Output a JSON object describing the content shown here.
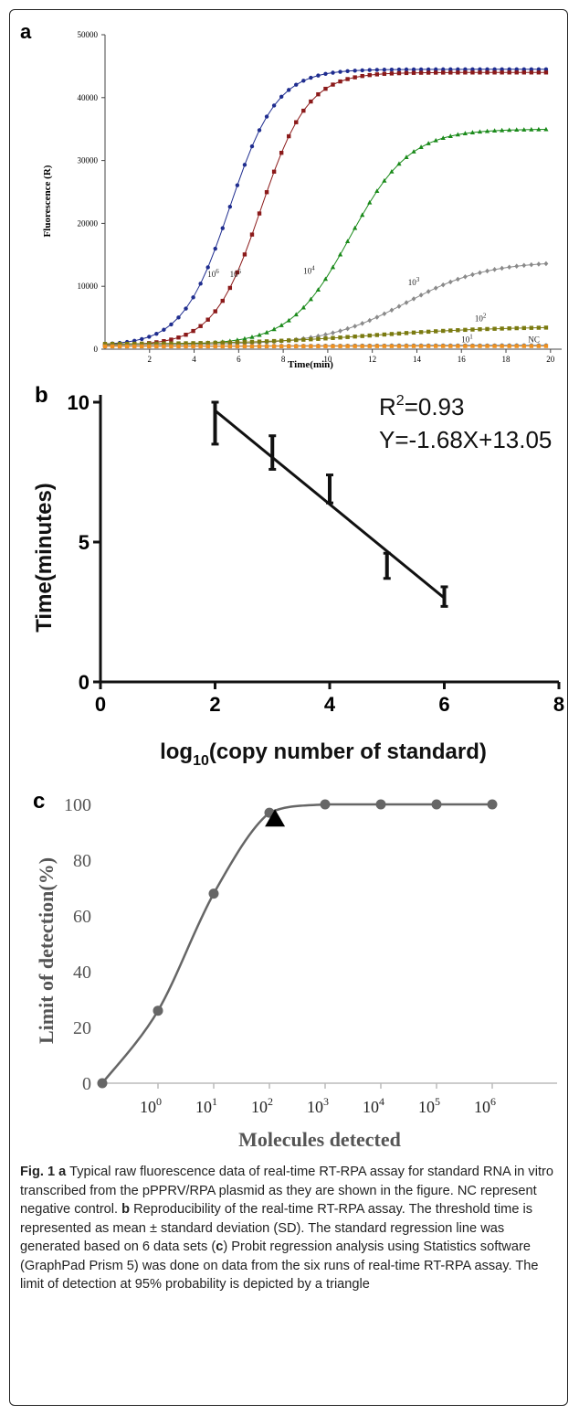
{
  "figure": {
    "panel_a": {
      "letter": "a",
      "title": "",
      "xlabel": "Time(min)",
      "ylabel": "Fluorescence (R)",
      "xticks": [
        2,
        4,
        6,
        8,
        10,
        12,
        14,
        16,
        18,
        20
      ],
      "yticks": [
        0,
        10000,
        20000,
        30000,
        40000,
        50000
      ],
      "xlim": [
        0,
        20.5
      ],
      "ylim": [
        0,
        50000
      ]
    },
    "panel_b": {
      "letter": "b",
      "xlabel_main": "log",
      "xlabel_sub": "10",
      "xlabel_rest": "(copy number of standard)",
      "ylabel": "Time(minutes)",
      "xticks": [
        0,
        2,
        4,
        6,
        8
      ],
      "yticks": [
        0,
        5,
        10
      ],
      "xlim": [
        0,
        8
      ],
      "ylim": [
        0,
        10
      ],
      "annotation_r2_main": "R",
      "annotation_r2_sup": "2",
      "annotation_r2_rest": "=0.93",
      "annotation_eq": "Y=-1.68X+13.05"
    },
    "panel_c": {
      "letter": "c",
      "xlabel": "Molecules detected",
      "ylabel": "Limit of detection(%)",
      "yticks": [
        0,
        20,
        40,
        60,
        80,
        100
      ],
      "xtick_labels": [
        {
          "base": "10",
          "exp": "0"
        },
        {
          "base": "10",
          "exp": "1"
        },
        {
          "base": "10",
          "exp": "2"
        },
        {
          "base": "10",
          "exp": "3"
        },
        {
          "base": "10",
          "exp": "4"
        },
        {
          "base": "10",
          "exp": "5"
        },
        {
          "base": "10",
          "exp": "6"
        }
      ]
    }
  },
  "chart_data": [
    {
      "type": "line",
      "panel": "a",
      "xlabel": "Time(min)",
      "ylabel": "Fluorescence (R)",
      "xlim": [
        0,
        20.5
      ],
      "ylim": [
        0,
        50000
      ],
      "grid": false,
      "series": [
        {
          "name": "10^6",
          "label_base": "10",
          "label_exp": "6",
          "color": "#1f2d8f",
          "marker": "circle",
          "baseline": 600,
          "plateau": 44500,
          "midpoint": 5.6,
          "slope": 0.95,
          "label_at": [
            4.6,
            11500
          ]
        },
        {
          "name": "10^5",
          "label_base": "10",
          "label_exp": "5",
          "color": "#8b1a1a",
          "marker": "square",
          "baseline": 600,
          "plateau": 44000,
          "midpoint": 7.0,
          "slope": 0.95,
          "label_at": [
            5.6,
            11500
          ]
        },
        {
          "name": "10^4",
          "label_base": "10",
          "label_exp": "4",
          "color": "#1a8a1a",
          "marker": "triangle",
          "baseline": 700,
          "plateau": 35000,
          "midpoint": 11.0,
          "slope": 0.75,
          "label_at": [
            8.9,
            12000
          ]
        },
        {
          "name": "10^3",
          "label_base": "10",
          "label_exp": "3",
          "color": "#8a8a8a",
          "marker": "diamond",
          "baseline": 700,
          "plateau": 14000,
          "midpoint": 13.5,
          "slope": 0.55,
          "label_at": [
            13.6,
            10200
          ]
        },
        {
          "name": "10^2",
          "label_base": "10",
          "label_exp": "2",
          "color": "#7a7a10",
          "marker": "square",
          "baseline": 800,
          "plateau": 3600,
          "midpoint": 12.0,
          "slope": 0.35,
          "label_at": [
            16.6,
            4400
          ]
        },
        {
          "name": "10^1",
          "label_base": "10",
          "label_exp": "1",
          "color": "#2e6db3",
          "marker": "circle",
          "baseline": 500,
          "plateau": 600,
          "midpoint": 10,
          "slope": 0.5,
          "label_at": [
            16.0,
            1100
          ]
        },
        {
          "name": "NC",
          "label_base": "NC",
          "label_exp": "",
          "color": "#f0901e",
          "marker": "square",
          "baseline": 450,
          "plateau": 500,
          "midpoint": 10,
          "slope": 0.5,
          "label_at": [
            19.0,
            1100
          ]
        }
      ]
    },
    {
      "type": "scatter",
      "panel": "b",
      "xlabel": "log10(copy number of standard)",
      "ylabel": "Time(minutes)",
      "xlim": [
        0,
        8
      ],
      "ylim": [
        0,
        10
      ],
      "grid": false,
      "points": [
        {
          "x": 2,
          "y": 9.7,
          "low": 8.5,
          "high": 10.0
        },
        {
          "x": 3,
          "y": 8.0,
          "low": 7.6,
          "high": 8.8
        },
        {
          "x": 4,
          "y": 6.4,
          "low": 6.4,
          "high": 7.4
        },
        {
          "x": 5,
          "y": 4.6,
          "low": 3.7,
          "high": 4.6
        },
        {
          "x": 6,
          "y": 3.0,
          "low": 2.7,
          "high": 3.4
        }
      ],
      "fit": {
        "x": [
          2,
          6
        ],
        "y": [
          9.7,
          3.0
        ]
      },
      "r2": 0.93,
      "equation": "Y=-1.68X+13.05"
    },
    {
      "type": "line",
      "panel": "c",
      "xlabel": "Molecules detected",
      "ylabel": "Limit of detection(%)",
      "ylim": [
        0,
        100
      ],
      "grid": false,
      "points": [
        {
          "x": "0",
          "y": 0
        },
        {
          "x": "10^0",
          "y": 26
        },
        {
          "x": "10^1",
          "y": 68
        },
        {
          "x": "10^2",
          "y": 97
        },
        {
          "x": "10^3",
          "y": 100
        },
        {
          "x": "10^4",
          "y": 100
        },
        {
          "x": "10^5",
          "y": 100
        },
        {
          "x": "10^6",
          "y": 100
        }
      ],
      "limit_of_detection_95": {
        "x_log10": 2.1,
        "y": 95,
        "marker": "triangle"
      }
    }
  ],
  "caption": {
    "a_label": "Fig. 1",
    "a_letter": "a",
    "a_text": " Typical raw fluorescence data of real-time RT-RPA assay for standard RNA in vitro transcribed from the pPPRV/RPA plasmid as they are shown in the figure. NC represent negative control. ",
    "b_letter": "b",
    "b_text": " Reproducibility of the real-time RT-RPA assay. The threshold time is represented as mean ± standard deviation (SD). The standard regression line was generated based on 6 data sets (",
    "c_letter": "c",
    "c_text": ") Probit regression analysis using Statistics software (GraphPad Prism 5) was done on data from the six runs of real-time RT-RPA assay. The limit of detection at 95% probability is depicted by a triangle"
  }
}
